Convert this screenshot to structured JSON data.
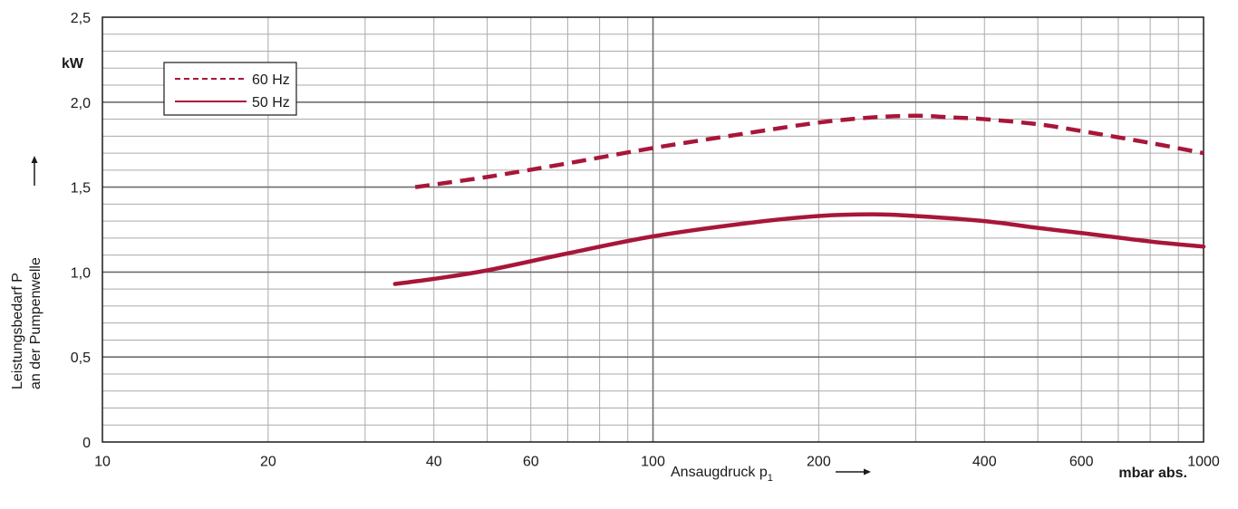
{
  "chart_data": {
    "type": "line",
    "x_scale": "log",
    "xlim": [
      10,
      1000
    ],
    "ylim": [
      0,
      2.5
    ],
    "grid": true,
    "legend_position": "top-left",
    "x_ticks": [
      {
        "value": 10,
        "label": "10"
      },
      {
        "value": 20,
        "label": "20"
      },
      {
        "value": 40,
        "label": "40"
      },
      {
        "value": 60,
        "label": "60"
      },
      {
        "value": 100,
        "label": "100"
      },
      {
        "value": 200,
        "label": "200"
      },
      {
        "value": 400,
        "label": "400"
      },
      {
        "value": 600,
        "label": "600"
      },
      {
        "value": 1000,
        "label": "1000"
      }
    ],
    "y_ticks": [
      {
        "value": 0,
        "label": "0"
      },
      {
        "value": 0.5,
        "label": "0,5"
      },
      {
        "value": 1.0,
        "label": "1,0"
      },
      {
        "value": 1.5,
        "label": "1,5"
      },
      {
        "value": 2.0,
        "label": "2,0"
      },
      {
        "value": 2.5,
        "label": "2,5"
      }
    ],
    "y_unit": "kW",
    "ylabel_line1": "Leistungsbedarf P",
    "ylabel_line2": "an der Pumpenwelle",
    "xlabel_main": "Ansaugdruck p",
    "xlabel_sub": "1",
    "x_unit": "mbar abs.",
    "series": [
      {
        "name": "60 Hz",
        "style": "dashed",
        "color": "#a8163a",
        "x": [
          37,
          50,
          70,
          100,
          150,
          200,
          250,
          300,
          350,
          400,
          500,
          600,
          800,
          1000
        ],
        "y": [
          1.5,
          1.56,
          1.64,
          1.73,
          1.82,
          1.88,
          1.91,
          1.92,
          1.91,
          1.9,
          1.87,
          1.83,
          1.76,
          1.7
        ]
      },
      {
        "name": "50 Hz",
        "style": "solid",
        "color": "#a8163a",
        "x": [
          34,
          40,
          50,
          70,
          100,
          150,
          200,
          250,
          300,
          400,
          500,
          600,
          800,
          1000
        ],
        "y": [
          0.93,
          0.96,
          1.01,
          1.11,
          1.21,
          1.29,
          1.33,
          1.34,
          1.33,
          1.3,
          1.26,
          1.23,
          1.18,
          1.15
        ]
      }
    ]
  }
}
